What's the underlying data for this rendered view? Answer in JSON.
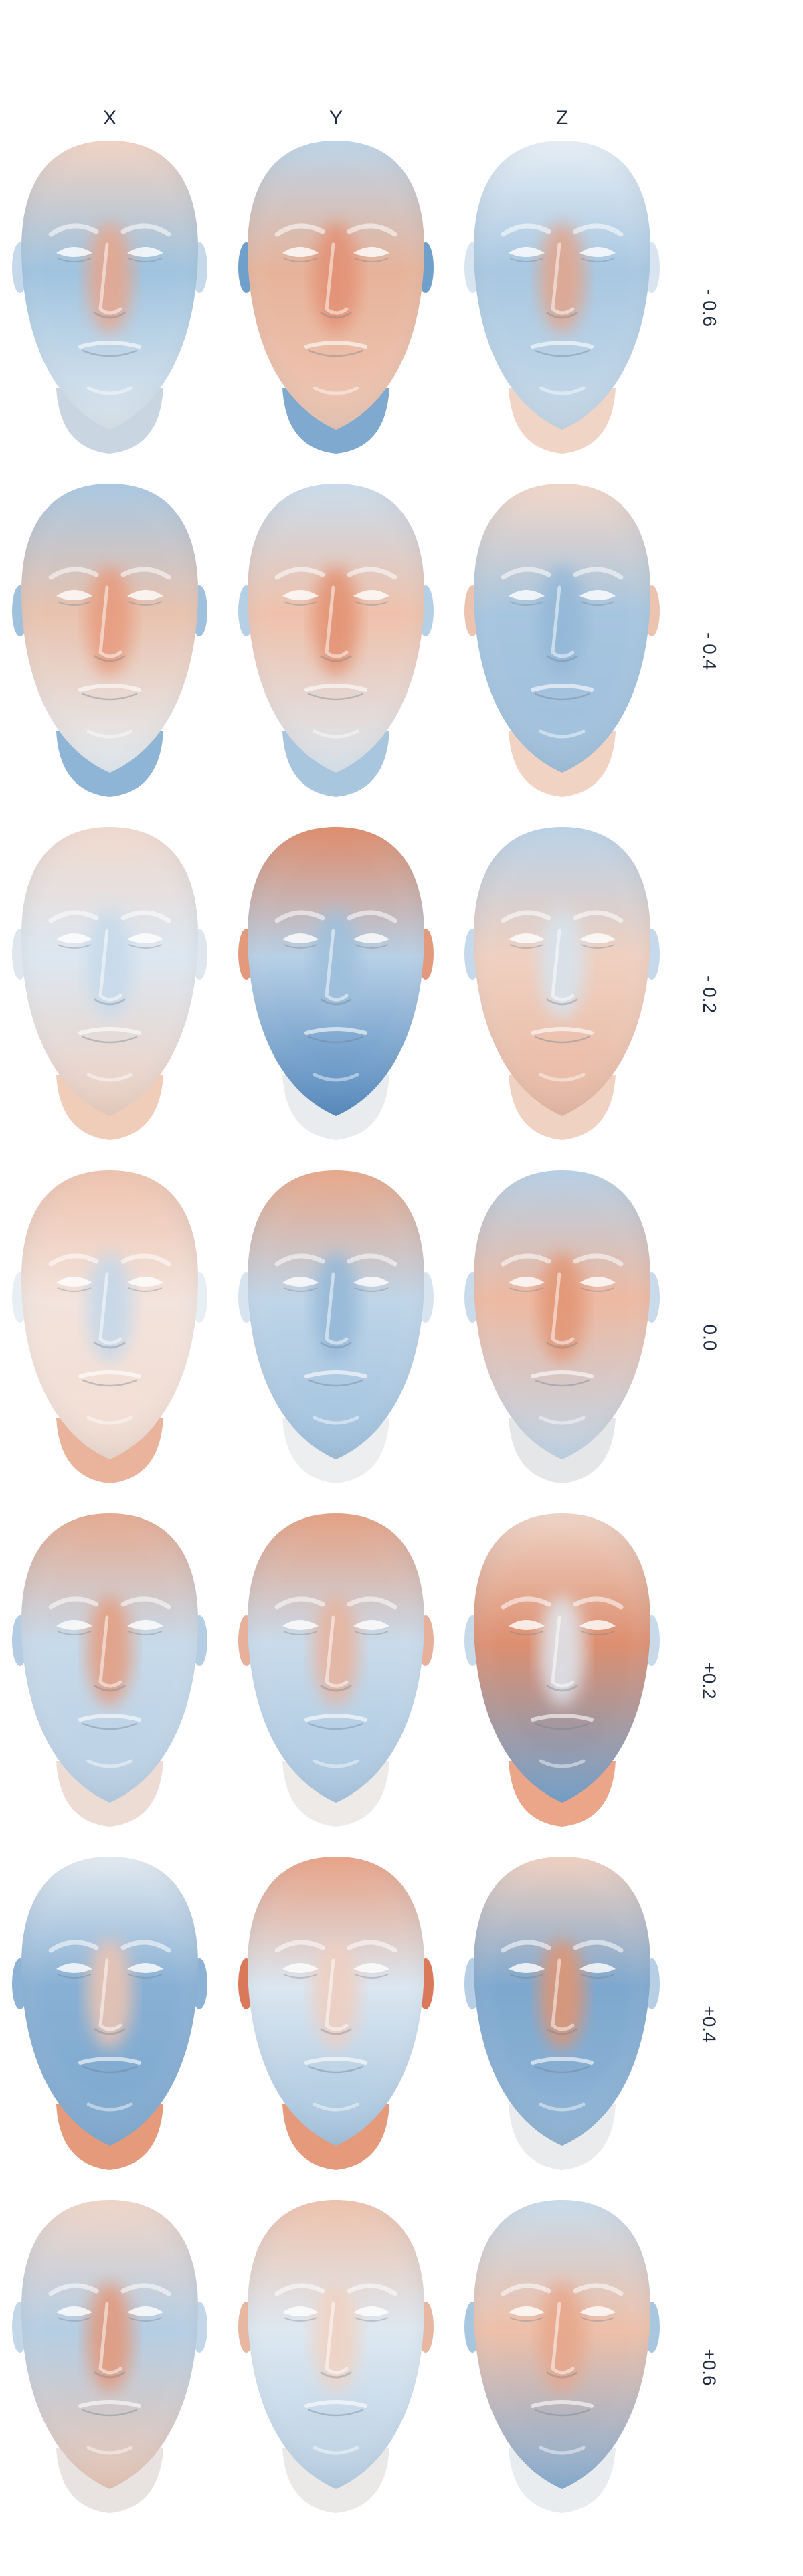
{
  "columns": [
    {
      "label": "X"
    },
    {
      "label": "Y"
    },
    {
      "label": "Z"
    }
  ],
  "rows": [
    {
      "label": "- 0.6",
      "faces": [
        {
          "forehead": "#f2d2c2",
          "midface": "#9fc3df",
          "nose": "#e9a58a",
          "chin": "#dfe8f0",
          "neck": "#c9d6e2",
          "ears": "#c5d9ea"
        },
        {
          "forehead": "#bcd4e8",
          "midface": "#e7b39a",
          "nose": "#e38f72",
          "chin": "#efc6b3",
          "neck": "#7fa9cf",
          "ears": "#6f9fcb"
        },
        {
          "forehead": "#e6eef5",
          "midface": "#a8c7e1",
          "nose": "#e4a489",
          "chin": "#c7dae9",
          "neck": "#f0d5c6",
          "ears": "#d8e5f0"
        }
      ]
    },
    {
      "label": "- 0.4",
      "faces": [
        {
          "forehead": "#a9c8e2",
          "midface": "#e9c2ae",
          "nose": "#e79a7b",
          "chin": "#e6eef4",
          "neck": "#8fb5d6",
          "ears": "#9fc1de"
        },
        {
          "forehead": "#c9dcec",
          "midface": "#efc1ab",
          "nose": "#e3906f",
          "chin": "#dde8f1",
          "neck": "#a9c6df",
          "ears": "#b5cfe4"
        },
        {
          "forehead": "#f3d6c7",
          "midface": "#a6c5df",
          "nose": "#93b7d7",
          "chin": "#9fbfdc",
          "neck": "#f1d3c4",
          "ears": "#ebc3af"
        }
      ]
    },
    {
      "label": "- 0.2",
      "faces": [
        {
          "forehead": "#f1d9cd",
          "midface": "#dce7f1",
          "nose": "#c6d9ea",
          "chin": "#efcfbf",
          "neck": "#f0cdb9",
          "ears": "#dfe6ed"
        },
        {
          "forehead": "#df8a68",
          "midface": "#b7d0e6",
          "nose": "#9dbfdc",
          "chin": "#4f86bd",
          "neck": "#e9ecef",
          "ears": "#e39a7c"
        },
        {
          "forehead": "#b9d1e7",
          "midface": "#efd0c0",
          "nose": "#d6e4f0",
          "chin": "#e9b6a0",
          "neck": "#f0d2c3",
          "ears": "#c6d9ea"
        }
      ]
    },
    {
      "label": "0.0",
      "faces": [
        {
          "forehead": "#efc2ad",
          "midface": "#f2e3dc",
          "nose": "#c3d7ea",
          "chin": "#f3ddd2",
          "neck": "#eab49c",
          "ears": "#e7eef4"
        },
        {
          "forehead": "#e8a687",
          "midface": "#bfd5e8",
          "nose": "#93b7d7",
          "chin": "#9fc0dd",
          "neck": "#eceef0",
          "ears": "#d7e4f0"
        },
        {
          "forehead": "#b6cfe5",
          "midface": "#eeb9a1",
          "nose": "#e29473",
          "chin": "#c1d6e9",
          "neck": "#e4e6e8",
          "ears": "#c9dbeb"
        }
      ]
    },
    {
      "label": "+0.2",
      "faces": [
        {
          "forehead": "#e6a98e",
          "midface": "#c7daea",
          "nose": "#e59b7d",
          "chin": "#b8cfe4",
          "neck": "#ecdcd4",
          "ears": "#b4cde3"
        },
        {
          "forehead": "#e59f80",
          "midface": "#c9dbeb",
          "nose": "#e9b29b",
          "chin": "#a8c6e0",
          "neck": "#eeeae8",
          "ears": "#e7b09a"
        },
        {
          "forehead": "#efd3c5",
          "midface": "#dd8f70",
          "nose": "#dfe8f1",
          "chin": "#6f9fcb",
          "neck": "#eba68a",
          "ears": "#c8daea"
        }
      ]
    },
    {
      "label": "+0.4",
      "faces": [
        {
          "forehead": "#e3eaf1",
          "midface": "#88b0d4",
          "nose": "#f0c5b0",
          "chin": "#7ea8cf",
          "neck": "#e59a7b",
          "ears": "#8cb2d5"
        },
        {
          "forehead": "#e8a184",
          "midface": "#dbe6f0",
          "nose": "#f0cdbe",
          "chin": "#a3c3de",
          "neck": "#e59a7b",
          "ears": "#d9795a"
        },
        {
          "forehead": "#f1d0bf",
          "midface": "#7ea8cf",
          "nose": "#e3946f",
          "chin": "#8fb4d5",
          "neck": "#e9ebed",
          "ears": "#b7cfe4"
        }
      ]
    },
    {
      "label": "+0.6",
      "faces": [
        {
          "forehead": "#f1d5c7",
          "midface": "#b5cee4",
          "nose": "#e49778",
          "chin": "#ecc6b3",
          "neck": "#e8e3e0",
          "ears": "#c3d7e9"
        },
        {
          "forehead": "#efc1aa",
          "midface": "#dde8f1",
          "nose": "#f1d1c1",
          "chin": "#b7cfe4",
          "neck": "#ebe9e8",
          "ears": "#e7b7a1"
        },
        {
          "forehead": "#c7dbeb",
          "midface": "#eec0a9",
          "nose": "#e7a68a",
          "chin": "#84acd2",
          "neck": "#e9ecef",
          "ears": "#a9c6df"
        }
      ]
    }
  ]
}
